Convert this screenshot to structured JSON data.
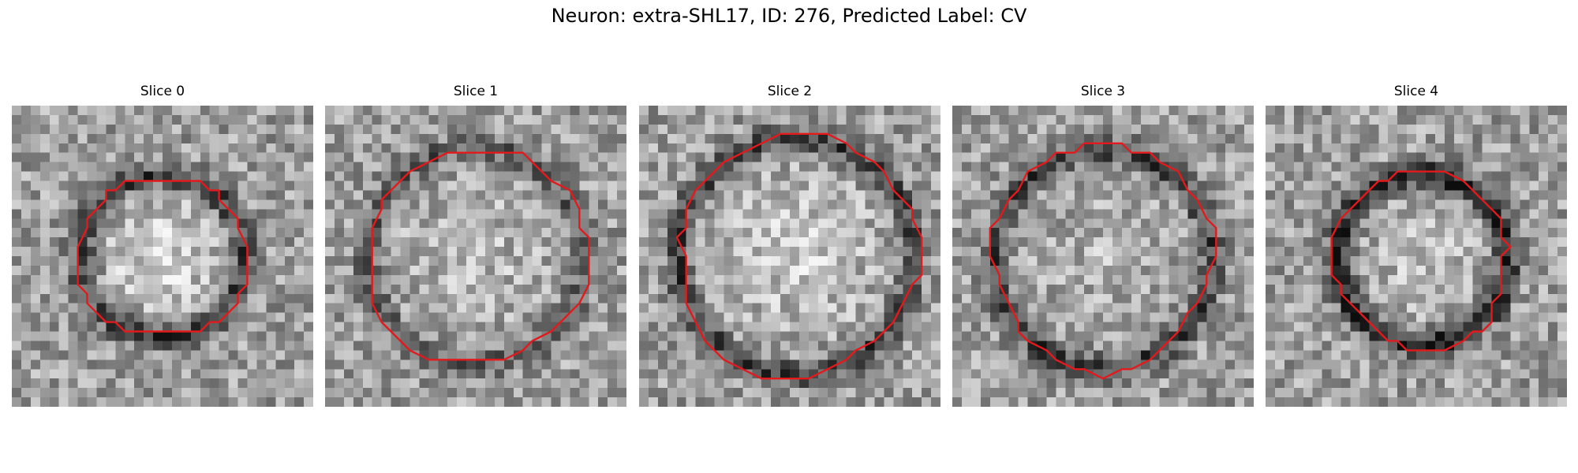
{
  "figure": {
    "title": "Neuron: extra-SHL17, ID: 276, Predicted Label: CV",
    "contour_color": "#e31a1c"
  },
  "panels": [
    {
      "title": "Slice 0",
      "ring_radius_frac": 0.27,
      "ring_darkness": 0.35,
      "center_brightness": 0.25
    },
    {
      "title": "Slice 1",
      "ring_radius_frac": 0.36,
      "ring_darkness": 0.25,
      "center_brightness": 0.12
    },
    {
      "title": "Slice 2",
      "ring_radius_frac": 0.39,
      "ring_darkness": 0.35,
      "center_brightness": 0.18
    },
    {
      "title": "Slice 3",
      "ring_radius_frac": 0.36,
      "ring_darkness": 0.35,
      "center_brightness": 0.08
    },
    {
      "title": "Slice 4",
      "ring_radius_frac": 0.28,
      "ring_darkness": 0.45,
      "center_brightness": 0.15
    }
  ]
}
